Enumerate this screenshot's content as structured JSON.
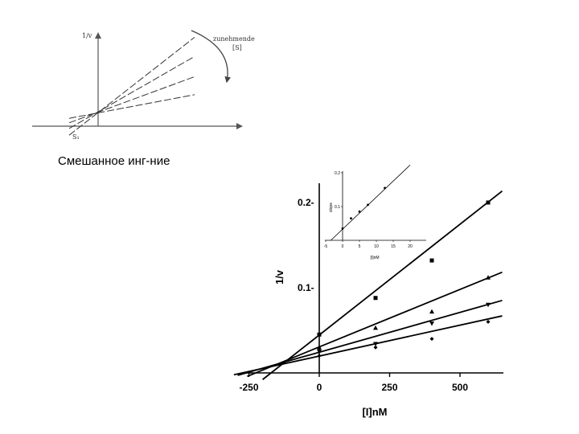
{
  "caption": "Смешанное инг-ние",
  "chart_data": [
    {
      "type": "line",
      "title": "",
      "ylabel": "1/v",
      "xlabel": "",
      "x_point_label": "S₁",
      "arrow_label_line1": "zunehmende",
      "arrow_label_line2": "[S]",
      "series": [
        {
          "x": [
            -1.5,
            5
          ],
          "y": [
            -0.4,
            3.95
          ]
        },
        {
          "x": [
            -1.5,
            5
          ],
          "y": [
            -0.1,
            3.1
          ]
        },
        {
          "x": [
            -1.5,
            5
          ],
          "y": [
            0.15,
            2.2
          ]
        },
        {
          "x": [
            -1.5,
            5
          ],
          "y": [
            0.35,
            1.4
          ]
        }
      ]
    },
    {
      "type": "scatter",
      "xlabel": "[I]nM",
      "ylabel": "1/v",
      "xlim": [
        -250,
        650
      ],
      "ylim": [
        -0.01,
        0.23
      ],
      "x_ticks": [
        -250,
        0,
        250,
        500
      ],
      "x_tick_labels": [
        "-250",
        "0",
        "250",
        "500"
      ],
      "y_ticks": [
        0.1,
        0.2
      ],
      "y_tick_labels": [
        "0.1-",
        "0.2-"
      ],
      "series": [
        {
          "marker": "square",
          "x": [
            0,
            200,
            400,
            600
          ],
          "y": [
            0.045,
            0.088,
            0.132,
            0.2
          ],
          "fit": {
            "slope": 0.00026,
            "intercept": 0.0445
          }
        },
        {
          "marker": "triangle-up",
          "x": [
            0,
            200,
            400,
            600
          ],
          "y": [
            0.03,
            0.053,
            0.072,
            0.112
          ],
          "fit": {
            "slope": 0.000135,
            "intercept": 0.0305
          }
        },
        {
          "marker": "triangle-down",
          "x": [
            0,
            200,
            400,
            600
          ],
          "y": [
            0.025,
            0.034,
            0.058,
            0.08
          ],
          "fit": {
            "slope": 9.35e-05,
            "intercept": 0.0243
          }
        },
        {
          "marker": "diamond",
          "x": [
            0,
            200,
            400,
            600
          ],
          "y": [
            0.02,
            0.03,
            0.04,
            0.06
          ],
          "fit": {
            "slope": 7.25e-05,
            "intercept": 0.0198
          }
        }
      ]
    },
    {
      "type": "scatter",
      "xlabel": "[I]nM",
      "ylabel": "slope",
      "xlim": [
        -5,
        20
      ],
      "ylim": [
        0,
        0.2
      ],
      "x_ticks": [
        -5,
        0,
        5,
        10,
        15,
        20
      ],
      "x_tick_labels": [
        "-5",
        "0",
        "5",
        "10",
        "15",
        "20"
      ],
      "y_ticks": [
        0.1,
        0.2
      ],
      "y_tick_labels": [
        "0.1",
        "0.2"
      ],
      "series": [
        {
          "x": [
            0,
            2.5,
            5,
            7.5,
            12.5
          ],
          "y": [
            0.035,
            0.065,
            0.085,
            0.105,
            0.155
          ],
          "fit": {
            "slope": 0.0095,
            "intercept": 0.033
          }
        }
      ]
    }
  ]
}
